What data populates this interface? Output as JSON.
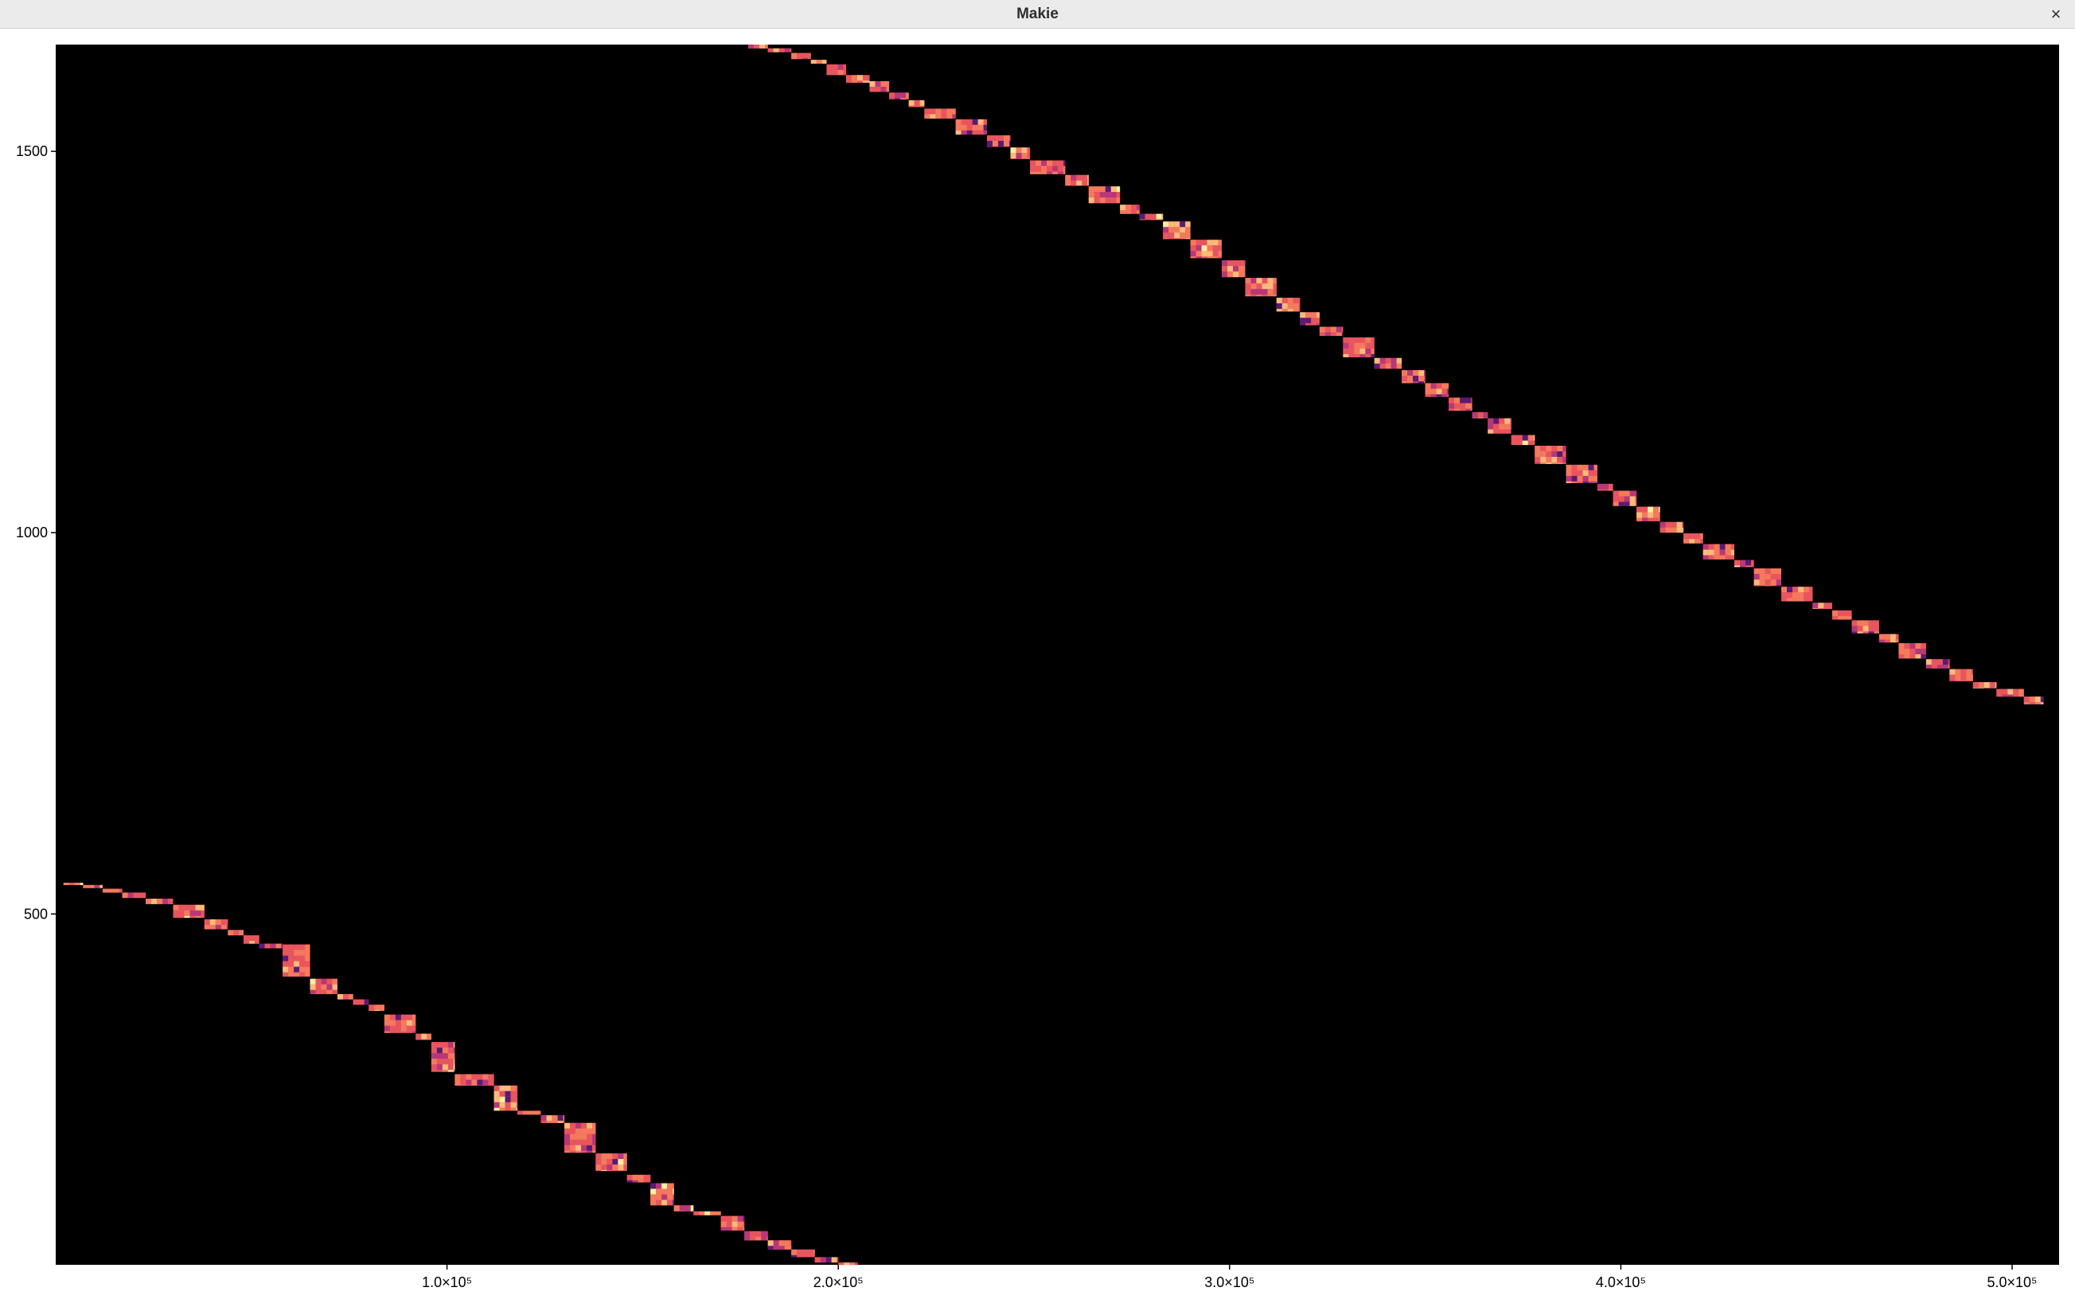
{
  "window": {
    "title": "Makie",
    "close_icon": "close-icon",
    "close_glyph": "×"
  },
  "chart_data": {
    "type": "heatmap",
    "title": "",
    "xlabel": "",
    "ylabel": "",
    "background": "#000000",
    "colormap": [
      "#5a1a75",
      "#b73779",
      "#e8555e",
      "#f47a5c",
      "#fcbb7b",
      "#fcf0a0"
    ],
    "xlim": [
      0,
      512000
    ],
    "ylim": [
      40,
      1640
    ],
    "xticks": [
      {
        "value": 100000,
        "label": "1.0×10⁵"
      },
      {
        "value": 200000,
        "label": "2.0×10⁵"
      },
      {
        "value": 300000,
        "label": "3.0×10⁵"
      },
      {
        "value": 400000,
        "label": "4.0×10⁵"
      },
      {
        "value": 500000,
        "label": "5.0×10⁵"
      }
    ],
    "yticks": [
      {
        "value": 500,
        "label": "500"
      },
      {
        "value": 1000,
        "label": "1000"
      },
      {
        "value": 1500,
        "label": "1500"
      }
    ],
    "grid": false,
    "bands": [
      {
        "name": "lower-band",
        "blocks": [
          [
            2000,
            7000,
            538,
            541
          ],
          [
            7000,
            12000,
            534,
            538
          ],
          [
            12000,
            17000,
            528,
            533
          ],
          [
            17000,
            23000,
            521,
            528
          ],
          [
            23000,
            30000,
            513,
            520
          ],
          [
            30000,
            38000,
            495,
            512
          ],
          [
            38000,
            44000,
            480,
            493
          ],
          [
            44000,
            48000,
            472,
            479
          ],
          [
            48000,
            52000,
            461,
            472
          ],
          [
            52000,
            58000,
            455,
            461
          ],
          [
            58000,
            65000,
            418,
            460
          ],
          [
            65000,
            72000,
            395,
            415
          ],
          [
            72000,
            76000,
            388,
            395
          ],
          [
            76000,
            80000,
            381,
            388
          ],
          [
            80000,
            84000,
            373,
            381
          ],
          [
            84000,
            92000,
            344,
            368
          ],
          [
            92000,
            96000,
            335,
            343
          ],
          [
            96000,
            102000,
            293,
            332
          ],
          [
            102000,
            112000,
            275,
            290
          ],
          [
            112000,
            118000,
            242,
            275
          ],
          [
            118000,
            124000,
            237,
            242
          ],
          [
            124000,
            130000,
            226,
            236
          ],
          [
            130000,
            138000,
            187,
            226
          ],
          [
            138000,
            146000,
            163,
            186
          ],
          [
            146000,
            152000,
            148,
            158
          ],
          [
            152000,
            158000,
            118,
            147
          ],
          [
            158000,
            163000,
            110,
            118
          ],
          [
            163000,
            170000,
            105,
            110
          ],
          [
            170000,
            176000,
            85,
            104
          ],
          [
            176000,
            182000,
            72,
            84
          ],
          [
            182000,
            188000,
            60,
            72
          ],
          [
            188000,
            194000,
            50,
            60
          ],
          [
            194000,
            200000,
            43,
            50
          ],
          [
            200000,
            205000,
            40,
            43
          ]
        ]
      },
      {
        "name": "upper-band",
        "blocks": [
          [
            177000,
            182000,
            1635,
            1640
          ],
          [
            182000,
            188000,
            1630,
            1635
          ],
          [
            188000,
            193000,
            1621,
            1629
          ],
          [
            193000,
            197000,
            1615,
            1620
          ],
          [
            197000,
            202000,
            1600,
            1614
          ],
          [
            202000,
            208000,
            1590,
            1600
          ],
          [
            208000,
            213000,
            1578,
            1592
          ],
          [
            213000,
            218000,
            1568,
            1577
          ],
          [
            218000,
            222000,
            1558,
            1567
          ],
          [
            222000,
            230000,
            1543,
            1556
          ],
          [
            230000,
            238000,
            1522,
            1542
          ],
          [
            238000,
            244000,
            1506,
            1521
          ],
          [
            244000,
            249000,
            1490,
            1505
          ],
          [
            249000,
            258000,
            1470,
            1488
          ],
          [
            258000,
            264000,
            1455,
            1469
          ],
          [
            264000,
            272000,
            1432,
            1454
          ],
          [
            272000,
            277000,
            1418,
            1430
          ],
          [
            277000,
            283000,
            1410,
            1418
          ],
          [
            283000,
            290000,
            1385,
            1408
          ],
          [
            290000,
            298000,
            1360,
            1384
          ],
          [
            298000,
            304000,
            1335,
            1357
          ],
          [
            304000,
            312000,
            1310,
            1334
          ],
          [
            312000,
            318000,
            1290,
            1308
          ],
          [
            318000,
            323000,
            1272,
            1289
          ],
          [
            323000,
            329000,
            1258,
            1270
          ],
          [
            329000,
            337000,
            1230,
            1256
          ],
          [
            337000,
            344000,
            1215,
            1229
          ],
          [
            344000,
            350000,
            1196,
            1213
          ],
          [
            350000,
            356000,
            1178,
            1196
          ],
          [
            356000,
            362000,
            1160,
            1177
          ],
          [
            362000,
            366000,
            1150,
            1158
          ],
          [
            366000,
            372000,
            1130,
            1150
          ],
          [
            372000,
            378000,
            1115,
            1128
          ],
          [
            378000,
            386000,
            1090,
            1114
          ],
          [
            386000,
            394000,
            1065,
            1089
          ],
          [
            394000,
            398000,
            1055,
            1064
          ],
          [
            398000,
            404000,
            1035,
            1055
          ],
          [
            404000,
            410000,
            1015,
            1034
          ],
          [
            410000,
            416000,
            1000,
            1014
          ],
          [
            416000,
            421000,
            986,
            999
          ],
          [
            421000,
            429000,
            965,
            985
          ],
          [
            429000,
            434000,
            955,
            964
          ],
          [
            434000,
            441000,
            930,
            953
          ],
          [
            441000,
            449000,
            910,
            929
          ],
          [
            449000,
            454000,
            900,
            908
          ],
          [
            454000,
            459000,
            886,
            898
          ],
          [
            459000,
            466000,
            868,
            885
          ],
          [
            466000,
            471000,
            856,
            867
          ],
          [
            471000,
            478000,
            835,
            855
          ],
          [
            478000,
            484000,
            822,
            834
          ],
          [
            484000,
            490000,
            805,
            821
          ],
          [
            490000,
            496000,
            796,
            804
          ],
          [
            496000,
            503000,
            785,
            795
          ],
          [
            503000,
            508000,
            775,
            785
          ]
        ]
      }
    ]
  }
}
